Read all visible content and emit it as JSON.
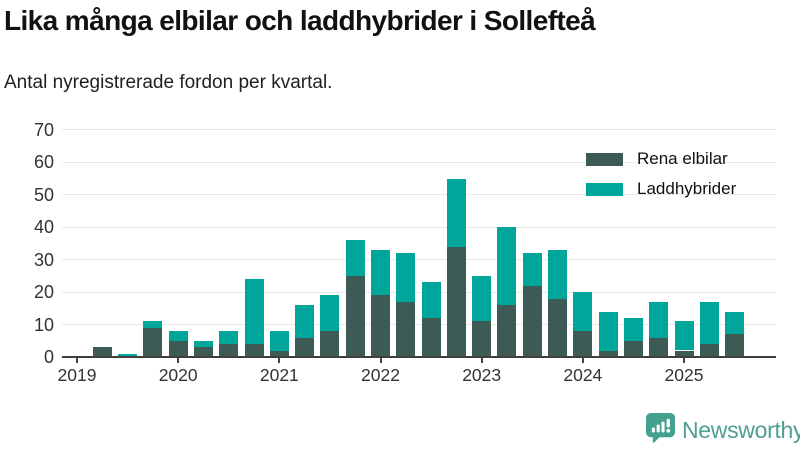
{
  "header": {
    "title": "Lika många elbilar och laddhybrider i Sollefteå",
    "subtitle": "Antal nyregistrerade fordon per kvartal."
  },
  "chart_data": {
    "type": "bar",
    "stacked": true,
    "title": "Lika många elbilar och laddhybrider i Sollefteå",
    "subtitle": "Antal nyregistrerade fordon per kvartal.",
    "x_unit": "quarter",
    "categories": [
      "2019 Q1",
      "2019 Q2",
      "2019 Q3",
      "2019 Q4",
      "2020 Q1",
      "2020 Q2",
      "2020 Q3",
      "2020 Q4",
      "2021 Q1",
      "2021 Q2",
      "2021 Q3",
      "2021 Q4",
      "2022 Q1",
      "2022 Q2",
      "2022 Q3",
      "2022 Q4",
      "2023 Q1",
      "2023 Q2",
      "2023 Q3",
      "2023 Q4",
      "2024 Q1",
      "2024 Q2",
      "2024 Q3",
      "2024 Q4",
      "2025 Q1",
      "2025 Q2",
      "2025 Q3"
    ],
    "series": [
      {
        "name": "Rena elbilar",
        "color": "#3d5b54",
        "values": [
          0,
          3,
          0,
          9,
          5,
          3,
          4,
          4,
          2,
          6,
          8,
          25,
          19,
          17,
          12,
          34,
          11,
          16,
          22,
          18,
          8,
          2,
          5,
          6,
          2,
          4,
          7
        ]
      },
      {
        "name": "Laddhybrider",
        "color": "#00a69a",
        "values": [
          0,
          0,
          1,
          2,
          3,
          2,
          4,
          20,
          6,
          10,
          11,
          11,
          14,
          15,
          11,
          21,
          14,
          24,
          10,
          15,
          12,
          12,
          7,
          11,
          9,
          13,
          7
        ]
      }
    ],
    "ylim": [
      0,
      70
    ],
    "yticks": [
      0,
      10,
      20,
      30,
      40,
      50,
      60,
      70
    ],
    "year_ticks": [
      "2019",
      "2020",
      "2021",
      "2022",
      "2023",
      "2024",
      "2025"
    ],
    "grid": "horizontal",
    "legend_position": "top-right"
  },
  "footer": {
    "brand": "Newsworthy",
    "logo_icon": "newsworthy-speech-bubble-bars-icon",
    "brand_color": "#4f9e92"
  },
  "colors": {
    "rena_elbilar": "#3d5b54",
    "laddhybrider": "#00a69a",
    "axis": "#3f3f3f",
    "gridline": "#e9e9e9",
    "text": "#111111"
  }
}
